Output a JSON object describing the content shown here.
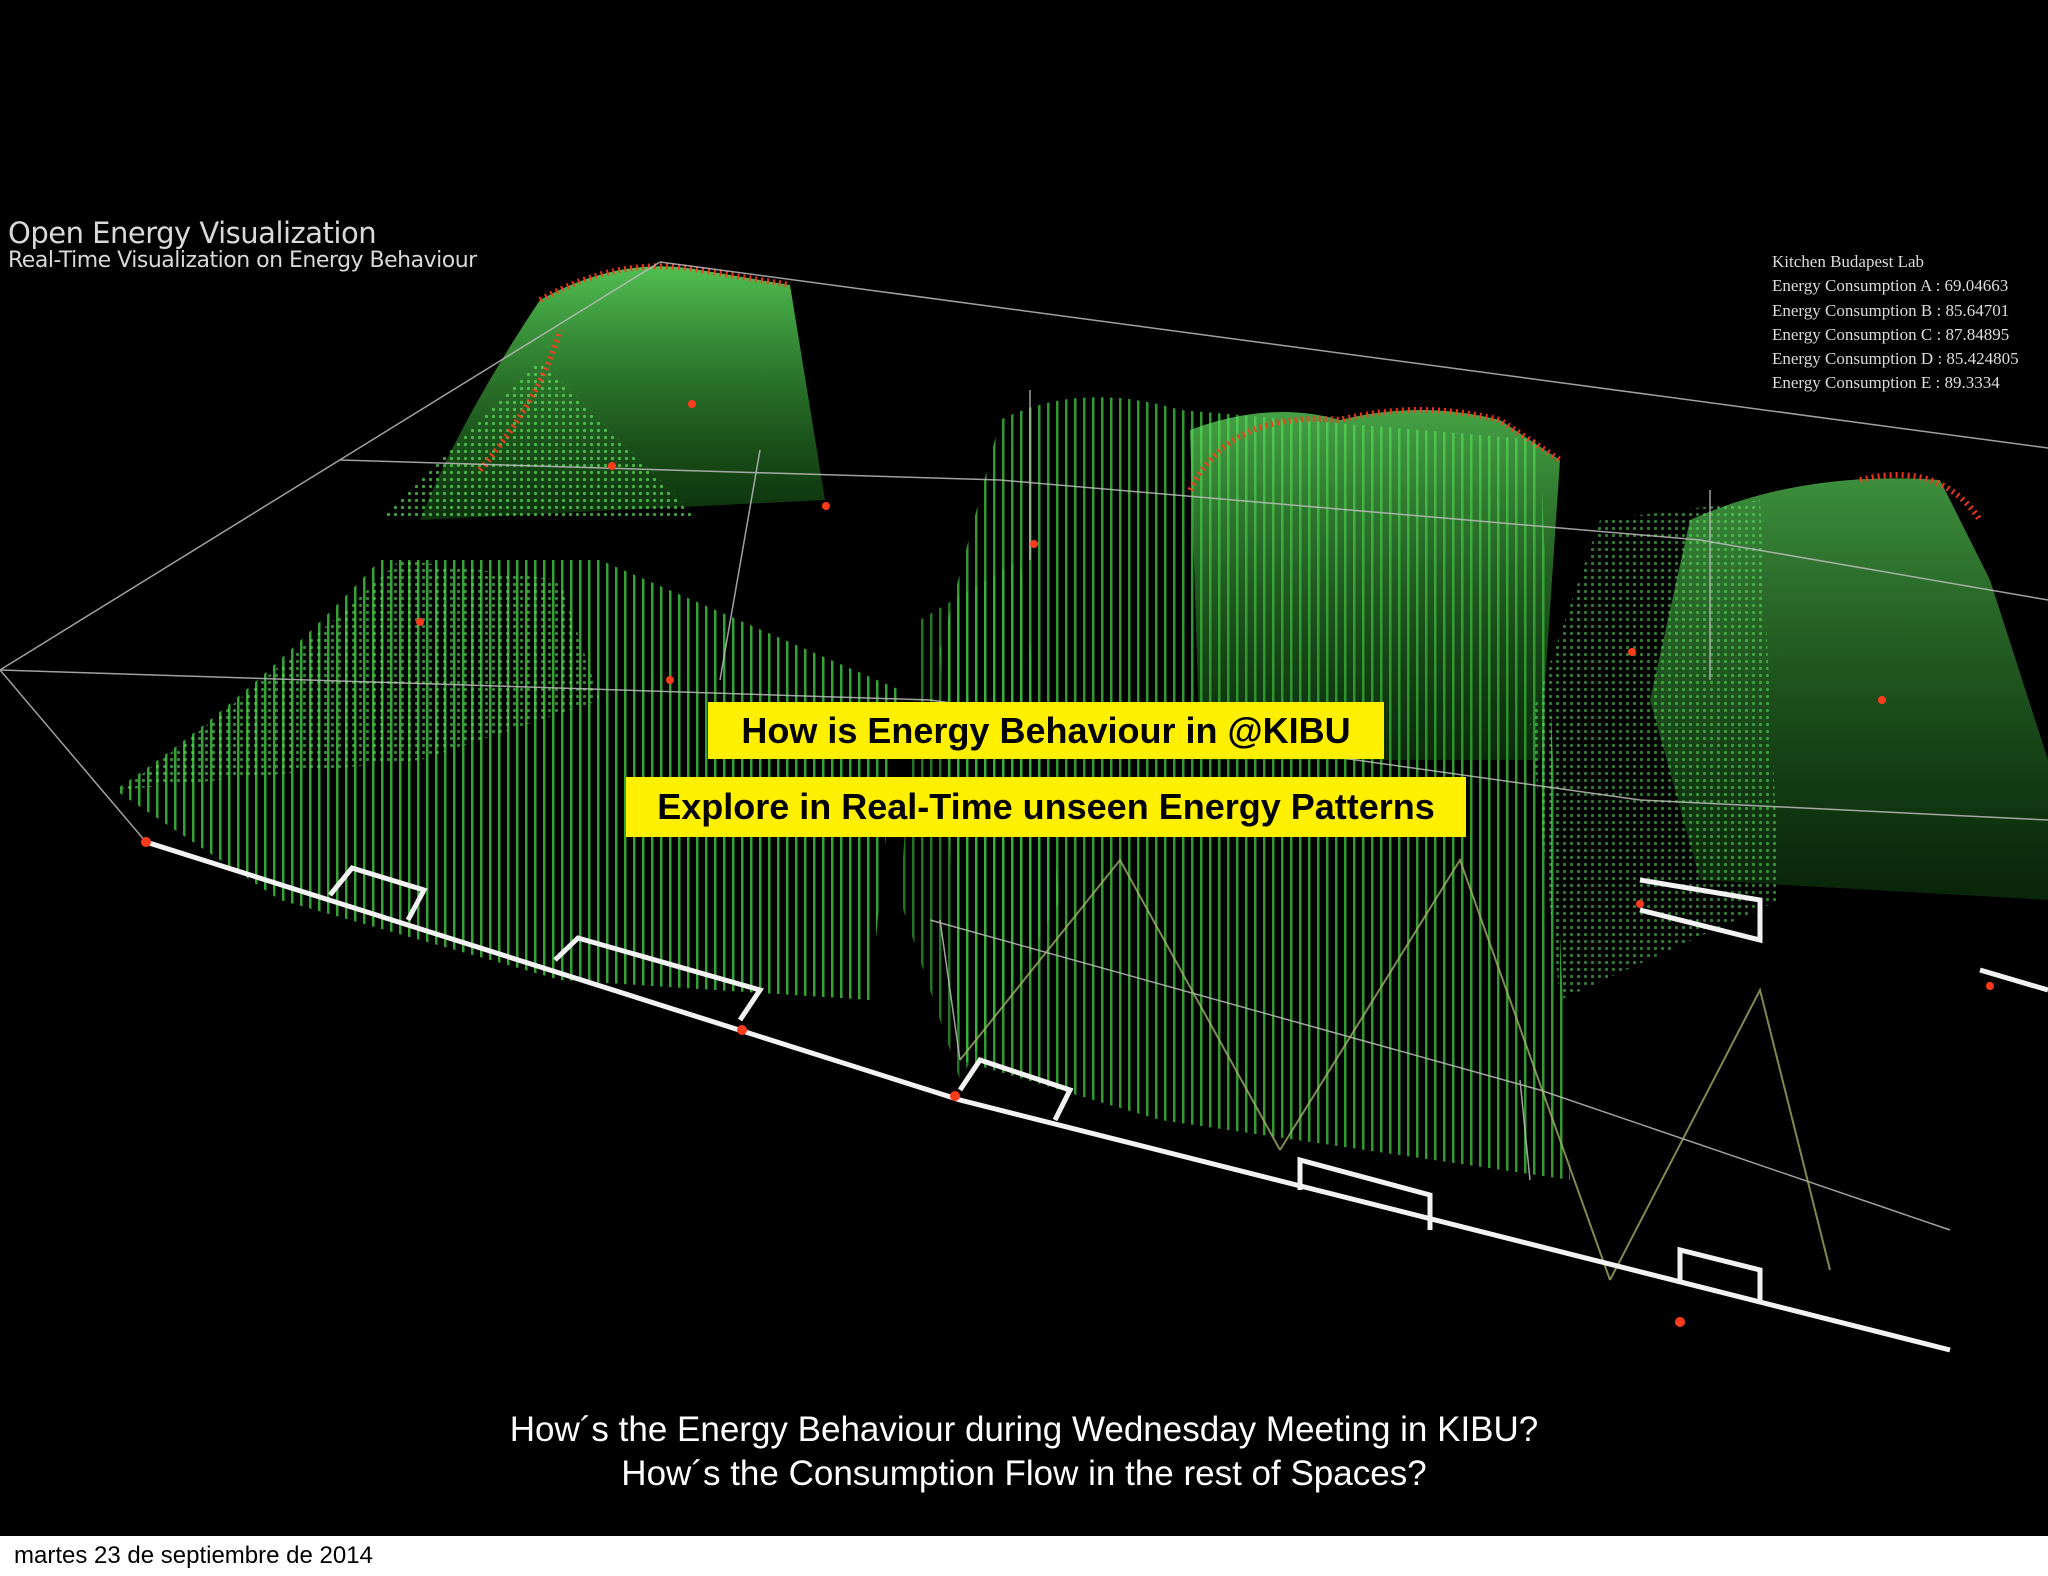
{
  "visualization": {
    "title": "Open Energy Visualization",
    "subtitle": "Real-Time Visualization on Energy Behaviour",
    "lab_name": "Kitchen Budapest Lab",
    "readings": [
      {
        "label": "Energy Consumption A",
        "value": "69.04663"
      },
      {
        "label": "Energy Consumption B",
        "value": "85.64701"
      },
      {
        "label": "Energy Consumption C",
        "value": "87.84895"
      },
      {
        "label": "Energy Consumption D",
        "value": "85.424805"
      },
      {
        "label": "Energy Consumption E",
        "value": "89.3334"
      }
    ],
    "colors": {
      "surface": "#4fd64f",
      "peak": "#ff3b1e",
      "grid": "#cfcfcf"
    }
  },
  "banners": {
    "line1": "How is Energy Behaviour in @KIBU",
    "line2": "Explore in Real-Time unseen Energy Patterns"
  },
  "questions": {
    "line1": "How´s the Energy Behaviour during Wednesday Meeting in KIBU?",
    "line2": "How´s the Consumption Flow in the rest of Spaces?"
  },
  "footer": {
    "date": "martes 23 de septiembre de 2014"
  }
}
